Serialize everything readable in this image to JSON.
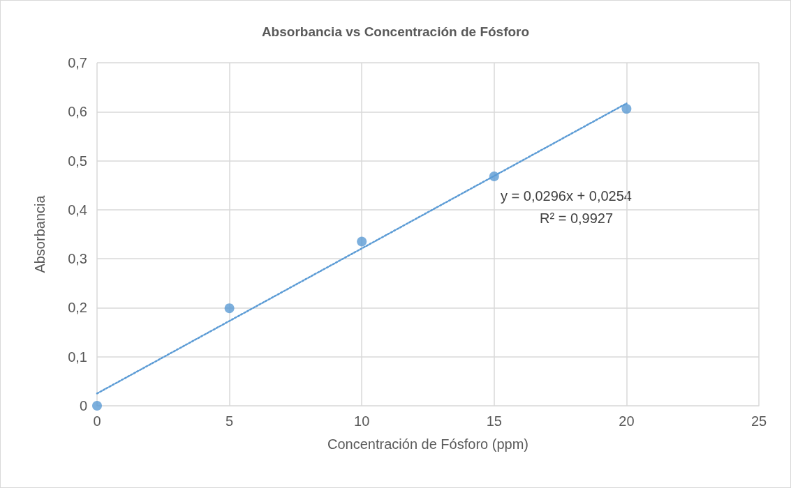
{
  "chart_data": {
    "type": "scatter",
    "title": "Absorbancia vs Concentración de Fósforo",
    "xlabel": "Concentración de Fósforo (ppm)",
    "ylabel": "Absorbancia",
    "annotations": [
      "y = 0,0296x + 0,0254",
      "R² = 0,9927"
    ],
    "x": [
      0,
      5,
      10,
      15,
      20
    ],
    "series": [
      {
        "color": "#5b9bd5",
        "marker": "circle",
        "values": [
          0,
          0.199,
          0.335,
          0.468,
          0.606
        ]
      },
      {
        "type": "line",
        "color": "#5b9bd5",
        "marker": "none",
        "line_style": "dotted",
        "x": [
          0,
          20
        ],
        "values": [
          0.025,
          0.617
        ]
      }
    ],
    "xlim": [
      0,
      25
    ],
    "xticks": [
      0,
      5,
      10,
      15,
      20,
      25
    ],
    "ylim": [
      0,
      0.7
    ],
    "yticks": [
      0,
      {
        "value": 0.1,
        "label": "0,1"
      },
      {
        "value": 0.2,
        "label": "0,2"
      },
      {
        "value": 0.3,
        "label": "0,3"
      },
      {
        "value": 0.4,
        "label": "0,4"
      },
      {
        "value": 0.5,
        "label": "0,5"
      },
      {
        "value": 0.6,
        "label": "0,6"
      },
      {
        "value": 0.7,
        "label": "0,7"
      }
    ],
    "grid": true
  }
}
